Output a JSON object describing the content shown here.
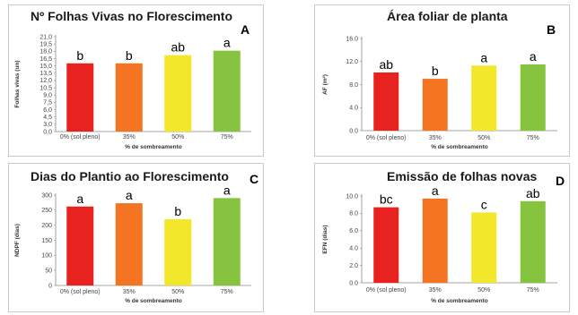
{
  "chart_data": [
    {
      "type": "bar",
      "panel": "A",
      "title": "Nº Folhas Vivas no Florescimento",
      "ylabel": "Folhas vivas (un)",
      "xlabel": "% de sombreamento",
      "categories": [
        "0% (sol pleno)",
        "35%",
        "50%",
        "75%"
      ],
      "values": [
        15.1,
        15.1,
        16.9,
        17.9
      ],
      "letters": [
        "b",
        "b",
        "ab",
        "a"
      ],
      "colors": [
        "#e8231f",
        "#f47421",
        "#f2e72a",
        "#86c43f"
      ],
      "ylim": [
        0,
        21
      ],
      "yticks": [
        "0,0",
        "3,0",
        "4,5",
        "6,0",
        "7,5",
        "9,0",
        "10,5",
        "12,0",
        "13,5",
        "15,0",
        "16,5",
        "18,0",
        "19,5",
        "21,0"
      ],
      "grid": false
    },
    {
      "type": "bar",
      "panel": "B",
      "title": "Área foliar de planta",
      "ylabel": "AF (m²)",
      "xlabel": "% de sombreamento",
      "categories": [
        "0% (sol pleno)",
        "35%",
        "50%",
        "75%"
      ],
      "values": [
        10.1,
        9.0,
        11.3,
        11.5
      ],
      "letters": [
        "ab",
        "b",
        "a",
        "a"
      ],
      "colors": [
        "#e8231f",
        "#f47421",
        "#f2e72a",
        "#86c43f"
      ],
      "ylim": [
        0,
        16
      ],
      "yticks": [
        "0.0",
        "4.0",
        "8.0",
        "12.0",
        "16.0"
      ],
      "grid": false
    },
    {
      "type": "bar",
      "panel": "C",
      "title": "Dias do Plantio ao Florescimento",
      "ylabel": "NDPF (dias)",
      "xlabel": "% de sombreamento",
      "categories": [
        "0% (sol pleno)",
        "35%",
        "50%",
        "75%"
      ],
      "values": [
        262,
        273,
        220,
        290
      ],
      "letters": [
        "a",
        "a",
        "b",
        "a"
      ],
      "colors": [
        "#e8231f",
        "#f47421",
        "#f2e72a",
        "#86c43f"
      ],
      "ylim": [
        0,
        300
      ],
      "yticks": [
        "0",
        "50",
        "100",
        "150",
        "200",
        "250",
        "300"
      ],
      "grid": false
    },
    {
      "type": "bar",
      "panel": "D",
      "title": "Emissão de folhas novas",
      "ylabel": "EFN (dias)",
      "xlabel": "% de sombreamento",
      "categories": [
        "0% (sol pleno)",
        "35%",
        "50%",
        "75%"
      ],
      "values": [
        8.7,
        9.7,
        8.1,
        9.4
      ],
      "letters": [
        "bc",
        "a",
        "c",
        "ab"
      ],
      "colors": [
        "#e8231f",
        "#f47421",
        "#f2e72a",
        "#86c43f"
      ],
      "ylim": [
        0,
        10
      ],
      "yticks": [
        "0.0",
        "2.0",
        "4.0",
        "6.0",
        "8.0",
        "10.0"
      ],
      "grid": false
    }
  ]
}
